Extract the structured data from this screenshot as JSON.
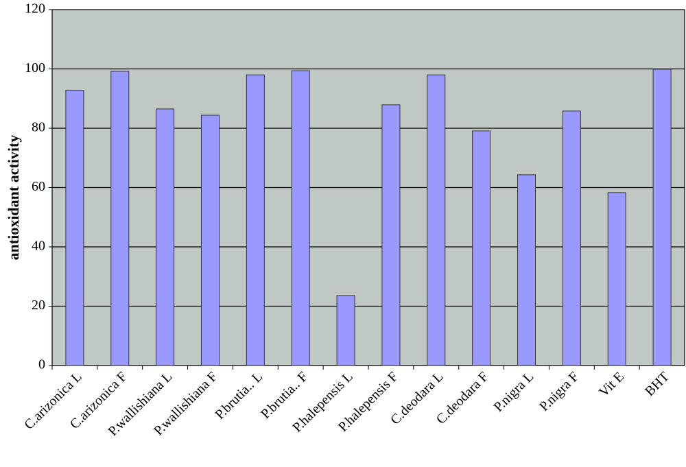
{
  "chart_data": {
    "type": "bar",
    "y_label": "antioxidant activity",
    "categories": [
      "C.arizonica L",
      "C.arizonica F",
      "P.wallishiana L",
      "P.wallishiana F",
      "P.brutia.. L",
      "P.brutia.. F",
      "P.halepensis L",
      "P.halepensis F",
      "C.deodara L",
      "C.deodara F",
      "P.nigra L",
      "P.nigra F",
      "Vit E",
      "BHT"
    ],
    "values": [
      92.8,
      99.2,
      86.5,
      84.4,
      98.0,
      99.4,
      23.6,
      87.9,
      98.0,
      79.1,
      64.3,
      85.8,
      58.3,
      99.9
    ],
    "color": "#9999ff",
    "ylim": [
      0,
      120
    ],
    "yticks": [
      0,
      20,
      40,
      60,
      80,
      100,
      120
    ],
    "grid": true
  }
}
